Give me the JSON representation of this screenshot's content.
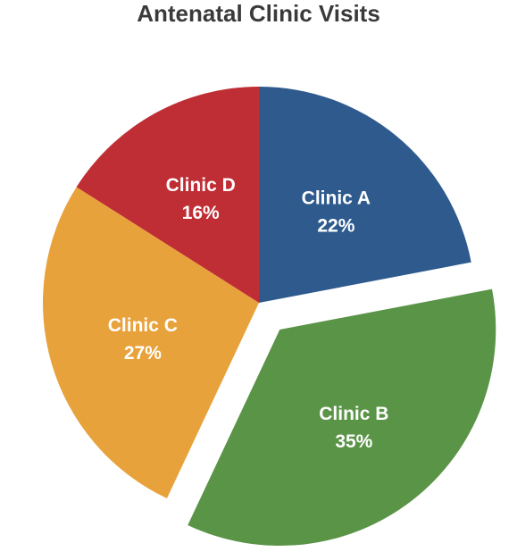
{
  "chart_data": {
    "type": "pie",
    "title": "Antenatal Clinic Visits",
    "categories": [
      "Clinic A",
      "Clinic B",
      "Clinic C",
      "Clinic D"
    ],
    "values": [
      22,
      35,
      27,
      16
    ],
    "value_labels": [
      "22%",
      "35%",
      "27%",
      "16%"
    ],
    "colors": [
      "#2E5A8E",
      "#5A9447",
      "#E8A23B",
      "#BE2E34"
    ],
    "exploded": [
      "Clinic B"
    ],
    "start_angle_deg": 0,
    "direction": "clockwise",
    "legend": "none"
  }
}
